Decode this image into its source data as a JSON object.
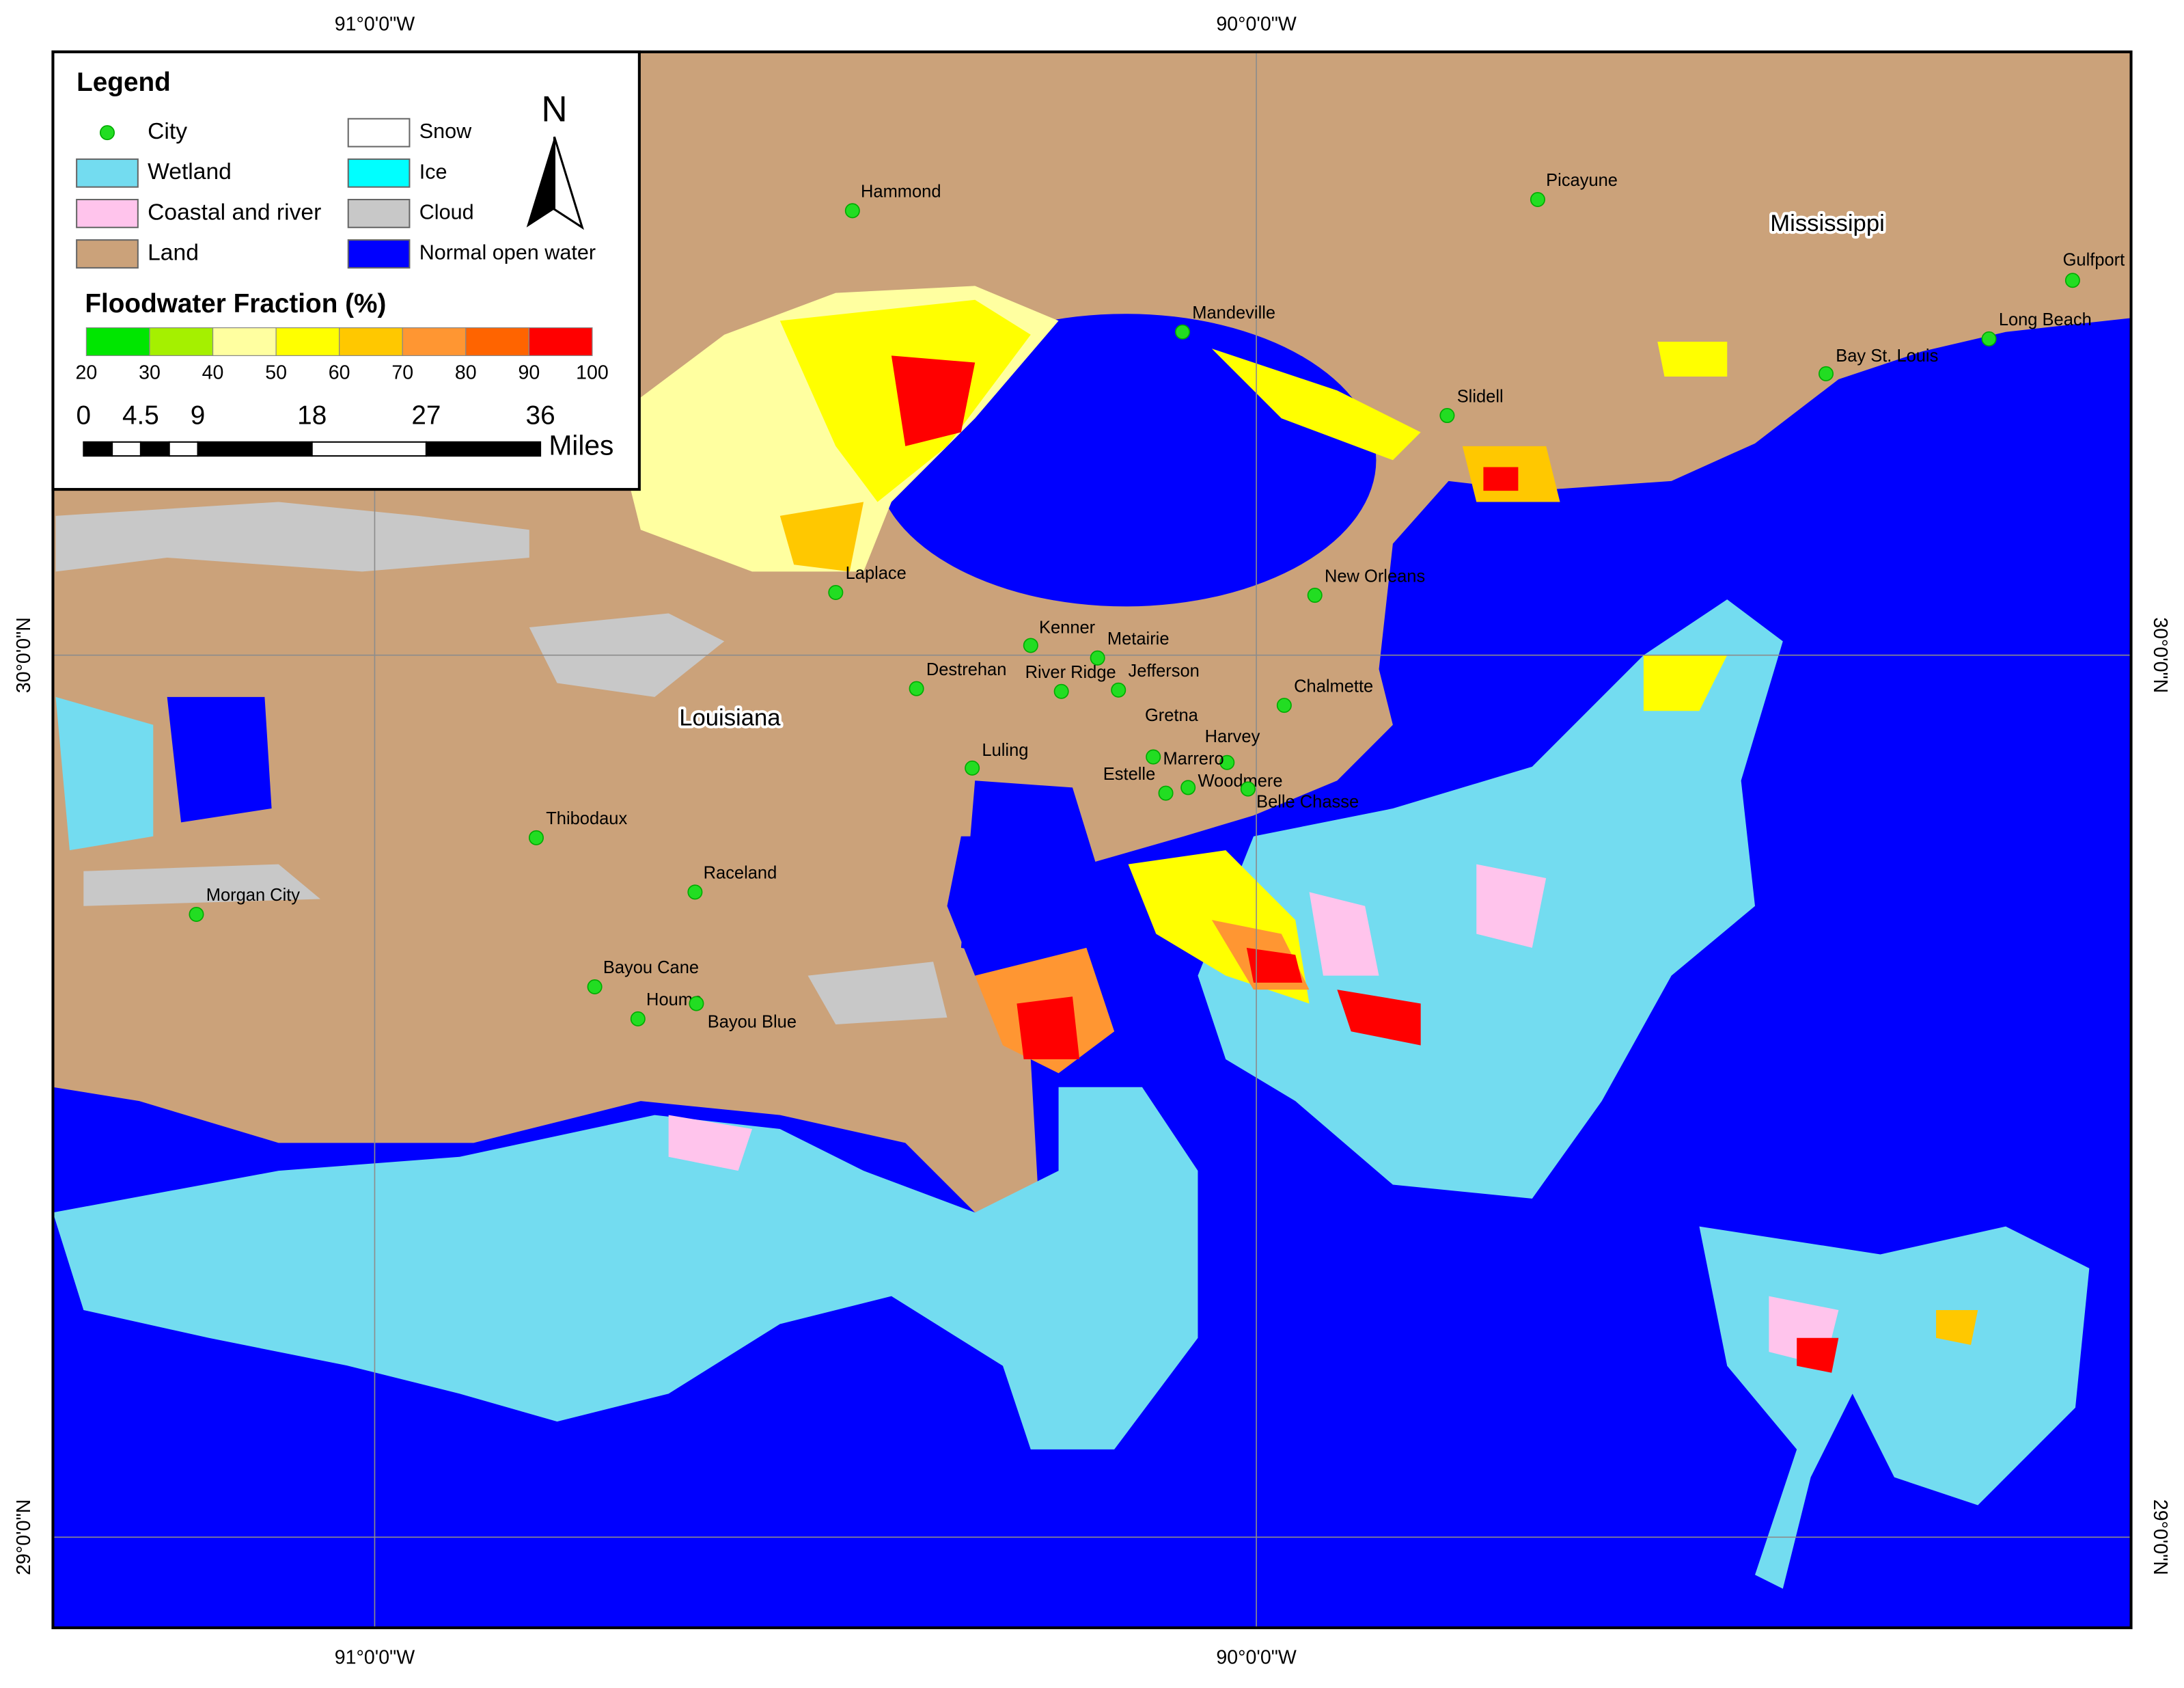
{
  "legend": {
    "title": "Legend",
    "items": [
      {
        "label": "City",
        "color": "#22dd22",
        "shape": "dot"
      },
      {
        "label": "Wetland",
        "color": "#73dcf0",
        "shape": "box"
      },
      {
        "label": "Coastal and river",
        "color": "#ffc4ec",
        "shape": "box"
      },
      {
        "label": "Land",
        "color": "#cba27a",
        "shape": "box"
      },
      {
        "label": "Snow",
        "color": "#ffffff",
        "shape": "box"
      },
      {
        "label": "Ice",
        "color": "#00ffff",
        "shape": "box"
      },
      {
        "label": "Cloud",
        "color": "#c8c8c8",
        "shape": "box"
      },
      {
        "label": "Normal open water",
        "color": "#0000ff",
        "shape": "box"
      }
    ]
  },
  "floodwater": {
    "title": "Floodwater Fraction (%)",
    "ticks": [
      20,
      30,
      40,
      50,
      60,
      70,
      80,
      90,
      100
    ],
    "colors": [
      "#00e600",
      "#a5f000",
      "#ffffa0",
      "#ffff00",
      "#ffc800",
      "#ff9632",
      "#ff6400",
      "#ff0000"
    ]
  },
  "scale": {
    "ticks": [
      0,
      4.5,
      9,
      18,
      27,
      36
    ],
    "unit": "Miles"
  },
  "north": "N",
  "graticule": {
    "lon": [
      "91°0'0\"W",
      "90°0'0\"W"
    ],
    "lat": [
      "30°0'0\"N",
      "29°0'0\"N"
    ]
  },
  "states": [
    "Louisiana",
    "Mississippi"
  ],
  "cities": [
    "Hammond",
    "Picayune",
    "Mandeville",
    "Gulfport",
    "Long Beach",
    "Bay St. Louis",
    "Slidell",
    "Laplace",
    "New Orleans",
    "Kenner",
    "Metairie",
    "Destrehan",
    "River Ridge",
    "Jefferson",
    "Chalmette",
    "Gretna",
    "Harvey",
    "Marrero",
    "Luling",
    "Estelle",
    "Woodmere",
    "Belle Chasse",
    "Thibodaux",
    "Raceland",
    "Morgan City",
    "Bayou Cane",
    "Houma",
    "Bayou Blue"
  ]
}
